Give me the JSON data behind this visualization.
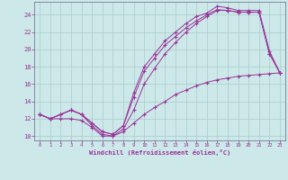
{
  "xlabel": "Windchill (Refroidissement éolien,°C)",
  "background_color": "#cce8e8",
  "grid_color": "#aacccc",
  "line_color": "#993399",
  "xlim": [
    -0.5,
    23.5
  ],
  "ylim": [
    9.5,
    25.5
  ],
  "yticks": [
    10,
    12,
    14,
    16,
    18,
    20,
    22,
    24
  ],
  "xticks": [
    0,
    1,
    2,
    3,
    4,
    5,
    6,
    7,
    8,
    9,
    10,
    11,
    12,
    13,
    14,
    15,
    16,
    17,
    18,
    19,
    20,
    21,
    22,
    23
  ],
  "series": [
    {
      "x": [
        0,
        1,
        2,
        3,
        4,
        5,
        6,
        7,
        8,
        9,
        10,
        11,
        12,
        13,
        14,
        15,
        16,
        17,
        18,
        19,
        20,
        21,
        22,
        23
      ],
      "y": [
        12.5,
        12.0,
        12.5,
        13.0,
        12.5,
        11.5,
        10.5,
        10.2,
        11.2,
        15.0,
        18.0,
        19.5,
        21.0,
        22.0,
        23.0,
        23.8,
        24.2,
        25.0,
        24.8,
        24.5,
        24.5,
        24.5,
        19.8,
        17.3
      ]
    },
    {
      "x": [
        0,
        1,
        2,
        3,
        4,
        5,
        6,
        7,
        8,
        9,
        10,
        11,
        12,
        13,
        14,
        15,
        16,
        17,
        18,
        19,
        20,
        21,
        22,
        23
      ],
      "y": [
        12.5,
        12.0,
        12.5,
        13.0,
        12.5,
        11.5,
        10.5,
        10.2,
        11.2,
        14.5,
        17.5,
        19.0,
        20.5,
        21.5,
        22.5,
        23.3,
        24.0,
        24.6,
        24.5,
        24.3,
        24.3,
        24.3,
        19.5,
        17.3
      ]
    },
    {
      "x": [
        0,
        1,
        2,
        3,
        4,
        5,
        6,
        7,
        8,
        9,
        10,
        11,
        12,
        13,
        14,
        15,
        16,
        17,
        18,
        19,
        20,
        21,
        22,
        23
      ],
      "y": [
        12.5,
        12.0,
        12.5,
        13.0,
        12.5,
        11.2,
        10.2,
        10.0,
        10.8,
        13.0,
        16.0,
        17.8,
        19.5,
        20.8,
        22.0,
        23.0,
        23.8,
        24.5,
        24.5,
        24.3,
        24.3,
        24.3,
        19.5,
        17.3
      ]
    },
    {
      "x": [
        0,
        1,
        2,
        3,
        4,
        5,
        6,
        7,
        8,
        9,
        10,
        11,
        12,
        13,
        14,
        15,
        16,
        17,
        18,
        19,
        20,
        21,
        22,
        23
      ],
      "y": [
        12.5,
        12.0,
        12.0,
        12.0,
        11.8,
        11.0,
        10.0,
        10.0,
        10.5,
        11.5,
        12.5,
        13.3,
        14.0,
        14.8,
        15.3,
        15.8,
        16.2,
        16.5,
        16.7,
        16.9,
        17.0,
        17.1,
        17.2,
        17.3
      ]
    }
  ]
}
